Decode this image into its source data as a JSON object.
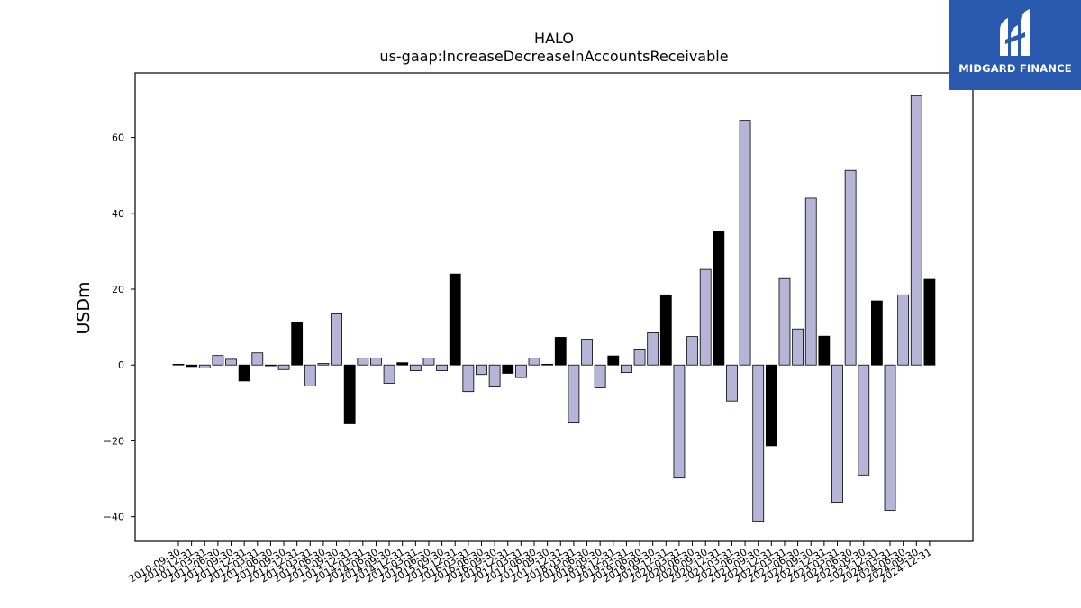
{
  "chart_data": {
    "type": "bar",
    "title": "HALO",
    "subtitle": "us-gaap:IncreaseDecreaseInAccountsReceivable",
    "ylabel": "USDm",
    "xlabel": "",
    "ylim": [
      -46.5,
      77
    ],
    "yticks": [
      -40,
      -20,
      0,
      20,
      40,
      60
    ],
    "grid": false,
    "colors": {
      "quarter": "#b8b4d8",
      "year_end": "#000000",
      "edge": "#000000"
    },
    "categories": [
      "2010-09-30",
      "2010-12-31",
      "2011-03-31",
      "2011-06-30",
      "2011-09-30",
      "2011-12-31",
      "2012-03-31",
      "2012-06-30",
      "2012-09-30",
      "2012-12-31",
      "2013-03-31",
      "2013-06-30",
      "2013-09-30",
      "2013-12-31",
      "2014-03-31",
      "2014-06-30",
      "2014-09-30",
      "2014-12-31",
      "2015-03-31",
      "2015-06-30",
      "2015-09-30",
      "2015-12-31",
      "2016-03-31",
      "2016-06-30",
      "2016-09-30",
      "2016-12-31",
      "2017-03-31",
      "2017-06-30",
      "2017-09-30",
      "2017-12-31",
      "2018-03-31",
      "2018-06-30",
      "2018-09-30",
      "2018-12-31",
      "2019-03-31",
      "2019-06-30",
      "2019-09-30",
      "2019-12-31",
      "2020-03-31",
      "2020-06-30",
      "2020-09-30",
      "2020-12-31",
      "2021-03-31",
      "2021-06-30",
      "2021-09-30",
      "2021-12-31",
      "2022-03-31",
      "2022-06-30",
      "2022-09-30",
      "2022-12-31",
      "2023-03-31",
      "2023-06-30",
      "2023-09-30",
      "2023-12-31",
      "2024-03-31",
      "2024-06-30",
      "2024-09-30",
      "2024-12-31"
    ],
    "values": [
      0.2,
      -0.4,
      -0.8,
      2.5,
      1.5,
      -4.2,
      3.2,
      -0.2,
      -1.2,
      11.2,
      -5.5,
      0.4,
      13.5,
      -15.5,
      1.8,
      1.8,
      -4.8,
      0.6,
      -1.5,
      1.8,
      -1.5,
      24.0,
      -7.0,
      -2.5,
      -5.8,
      -2.2,
      -3.3,
      1.8,
      0.2,
      7.3,
      -15.3,
      6.8,
      -6.0,
      2.4,
      -2.0,
      4.0,
      8.5,
      18.5,
      -29.8,
      7.5,
      25.2,
      35.2,
      -9.5,
      64.5,
      -41.2,
      -21.3,
      22.8,
      9.5,
      44.0,
      7.6,
      -36.2,
      51.3,
      -29.0,
      16.9,
      -38.3,
      18.5,
      71.0,
      22.6
    ],
    "year_end": [
      false,
      true,
      false,
      false,
      false,
      true,
      false,
      false,
      false,
      true,
      false,
      false,
      false,
      true,
      false,
      false,
      false,
      true,
      false,
      false,
      false,
      true,
      false,
      false,
      false,
      true,
      false,
      false,
      false,
      true,
      false,
      false,
      false,
      true,
      false,
      false,
      false,
      true,
      false,
      false,
      false,
      true,
      false,
      false,
      false,
      true,
      false,
      false,
      false,
      true,
      false,
      false,
      false,
      true,
      false,
      false,
      false,
      true
    ]
  },
  "logo": {
    "text": "MIDGARD FINANCE"
  }
}
